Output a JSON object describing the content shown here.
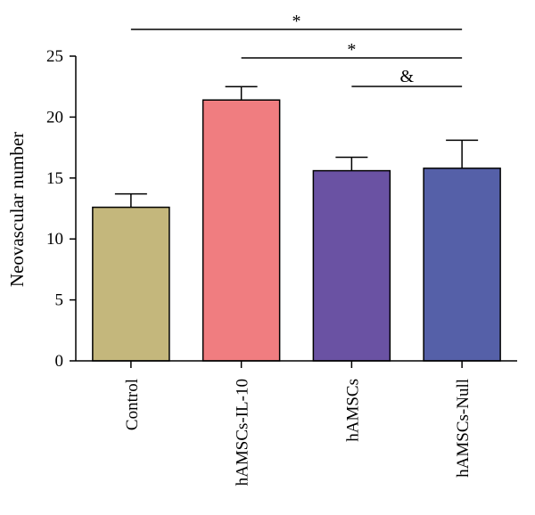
{
  "chart_data": {
    "type": "bar",
    "categories": [
      "Control",
      "hAMSCs-IL-10",
      "hAMSCs",
      "hAMSCs-Null"
    ],
    "values": [
      12.6,
      21.4,
      15.6,
      15.8
    ],
    "errors": [
      1.1,
      1.1,
      1.1,
      2.3
    ],
    "colors": [
      "#c4b77c",
      "#f07d80",
      "#6a52a3",
      "#5560a8"
    ],
    "ylabel": "Neovascular number",
    "xlabel": "",
    "ylim": [
      0,
      25
    ],
    "yticks": [
      "0",
      "5",
      "10",
      "15",
      "20",
      "25"
    ],
    "grid": false,
    "significance": [
      {
        "from": "Control",
        "to": "hAMSCs-Null",
        "label": "*"
      },
      {
        "from": "hAMSCs-IL-10",
        "to": "hAMSCs-Null",
        "label": "*"
      },
      {
        "from": "hAMSCs",
        "to": "hAMSCs-Null",
        "label": "&"
      }
    ]
  }
}
